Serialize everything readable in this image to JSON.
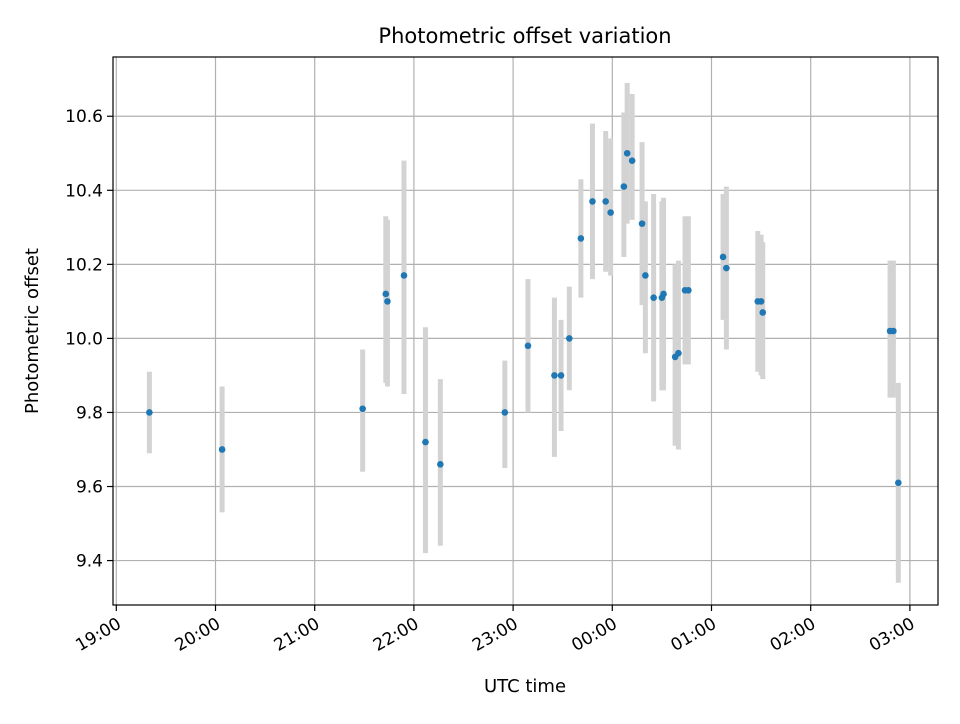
{
  "chart_data": {
    "type": "scatter",
    "title": "Photometric offset variation",
    "xlabel": "UTC time",
    "ylabel": "Photometric offset",
    "x_unit": "UTC date-time",
    "xlim": [
      "2024-01-01T18:58:00",
      "2024-01-02T03:17:00"
    ],
    "ylim": [
      9.28,
      10.76
    ],
    "x_ticks": [
      {
        "x": "2024-01-01T19:00",
        "label": "19:00"
      },
      {
        "x": "2024-01-01T20:00",
        "label": "20:00"
      },
      {
        "x": "2024-01-01T21:00",
        "label": "21:00"
      },
      {
        "x": "2024-01-01T22:00",
        "label": "22:00"
      },
      {
        "x": "2024-01-01T23:00",
        "label": "23:00"
      },
      {
        "x": "2024-01-02T00:00",
        "label": "00:00"
      },
      {
        "x": "2024-01-02T01:00",
        "label": "01:00"
      },
      {
        "x": "2024-01-02T02:00",
        "label": "02:00"
      },
      {
        "x": "2024-01-02T03:00",
        "label": "03:00"
      }
    ],
    "y_ticks": [
      9.4,
      9.6,
      9.8,
      10.0,
      10.2,
      10.4,
      10.6
    ],
    "grid": true,
    "marker_color": "#1f77b4",
    "errorbar_color": "#d3d3d3",
    "points": [
      {
        "t": "2024-01-01T19:20",
        "y": 9.8,
        "lo": 9.69,
        "hi": 9.91
      },
      {
        "t": "2024-01-01T20:04",
        "y": 9.7,
        "lo": 9.53,
        "hi": 9.87
      },
      {
        "t": "2024-01-01T21:29",
        "y": 9.81,
        "lo": 9.64,
        "hi": 9.97
      },
      {
        "t": "2024-01-01T21:43",
        "y": 10.12,
        "lo": 9.88,
        "hi": 10.33
      },
      {
        "t": "2024-01-01T21:44",
        "y": 10.1,
        "lo": 9.87,
        "hi": 10.32
      },
      {
        "t": "2024-01-01T21:54",
        "y": 10.17,
        "lo": 9.85,
        "hi": 10.48
      },
      {
        "t": "2024-01-01T22:07",
        "y": 9.72,
        "lo": 9.42,
        "hi": 10.03
      },
      {
        "t": "2024-01-01T22:16",
        "y": 9.66,
        "lo": 9.44,
        "hi": 9.89
      },
      {
        "t": "2024-01-01T22:55",
        "y": 9.8,
        "lo": 9.65,
        "hi": 9.94
      },
      {
        "t": "2024-01-01T23:09",
        "y": 9.98,
        "lo": 9.8,
        "hi": 10.16
      },
      {
        "t": "2024-01-01T23:25",
        "y": 9.9,
        "lo": 9.68,
        "hi": 10.11
      },
      {
        "t": "2024-01-01T23:29",
        "y": 9.9,
        "lo": 9.75,
        "hi": 10.05
      },
      {
        "t": "2024-01-01T23:34",
        "y": 10.0,
        "lo": 9.86,
        "hi": 10.14
      },
      {
        "t": "2024-01-01T23:41",
        "y": 10.27,
        "lo": 10.11,
        "hi": 10.43
      },
      {
        "t": "2024-01-01T23:48",
        "y": 10.37,
        "lo": 10.16,
        "hi": 10.58
      },
      {
        "t": "2024-01-01T23:56",
        "y": 10.37,
        "lo": 10.18,
        "hi": 10.56
      },
      {
        "t": "2024-01-01T23:59",
        "y": 10.34,
        "lo": 10.17,
        "hi": 10.54
      },
      {
        "t": "2024-01-02T00:07",
        "y": 10.41,
        "lo": 10.22,
        "hi": 10.61
      },
      {
        "t": "2024-01-02T00:09",
        "y": 10.5,
        "lo": 10.31,
        "hi": 10.69
      },
      {
        "t": "2024-01-02T00:12",
        "y": 10.48,
        "lo": 10.32,
        "hi": 10.66
      },
      {
        "t": "2024-01-02T00:18",
        "y": 10.31,
        "lo": 10.09,
        "hi": 10.53
      },
      {
        "t": "2024-01-02T00:20",
        "y": 10.17,
        "lo": 9.96,
        "hi": 10.37
      },
      {
        "t": "2024-01-02T00:25",
        "y": 10.11,
        "lo": 9.83,
        "hi": 10.39
      },
      {
        "t": "2024-01-02T00:30",
        "y": 10.11,
        "lo": 9.86,
        "hi": 10.37
      },
      {
        "t": "2024-01-02T00:31",
        "y": 10.12,
        "lo": 9.86,
        "hi": 10.38
      },
      {
        "t": "2024-01-02T00:38",
        "y": 9.95,
        "lo": 9.71,
        "hi": 10.2
      },
      {
        "t": "2024-01-02T00:40",
        "y": 9.96,
        "lo": 9.7,
        "hi": 10.21
      },
      {
        "t": "2024-01-02T00:44",
        "y": 10.13,
        "lo": 9.93,
        "hi": 10.33
      },
      {
        "t": "2024-01-02T00:46",
        "y": 10.13,
        "lo": 9.93,
        "hi": 10.33
      },
      {
        "t": "2024-01-02T01:07",
        "y": 10.22,
        "lo": 10.05,
        "hi": 10.39
      },
      {
        "t": "2024-01-02T01:09",
        "y": 10.19,
        "lo": 9.97,
        "hi": 10.41
      },
      {
        "t": "2024-01-02T01:28",
        "y": 10.1,
        "lo": 9.91,
        "hi": 10.29
      },
      {
        "t": "2024-01-02T01:30",
        "y": 10.1,
        "lo": 9.9,
        "hi": 10.28
      },
      {
        "t": "2024-01-02T01:31",
        "y": 10.07,
        "lo": 9.89,
        "hi": 10.26
      },
      {
        "t": "2024-01-02T02:48",
        "y": 10.02,
        "lo": 9.84,
        "hi": 10.21
      },
      {
        "t": "2024-01-02T02:50",
        "y": 10.02,
        "lo": 9.84,
        "hi": 10.21
      },
      {
        "t": "2024-01-02T02:53",
        "y": 9.61,
        "lo": 9.34,
        "hi": 9.88
      }
    ]
  }
}
